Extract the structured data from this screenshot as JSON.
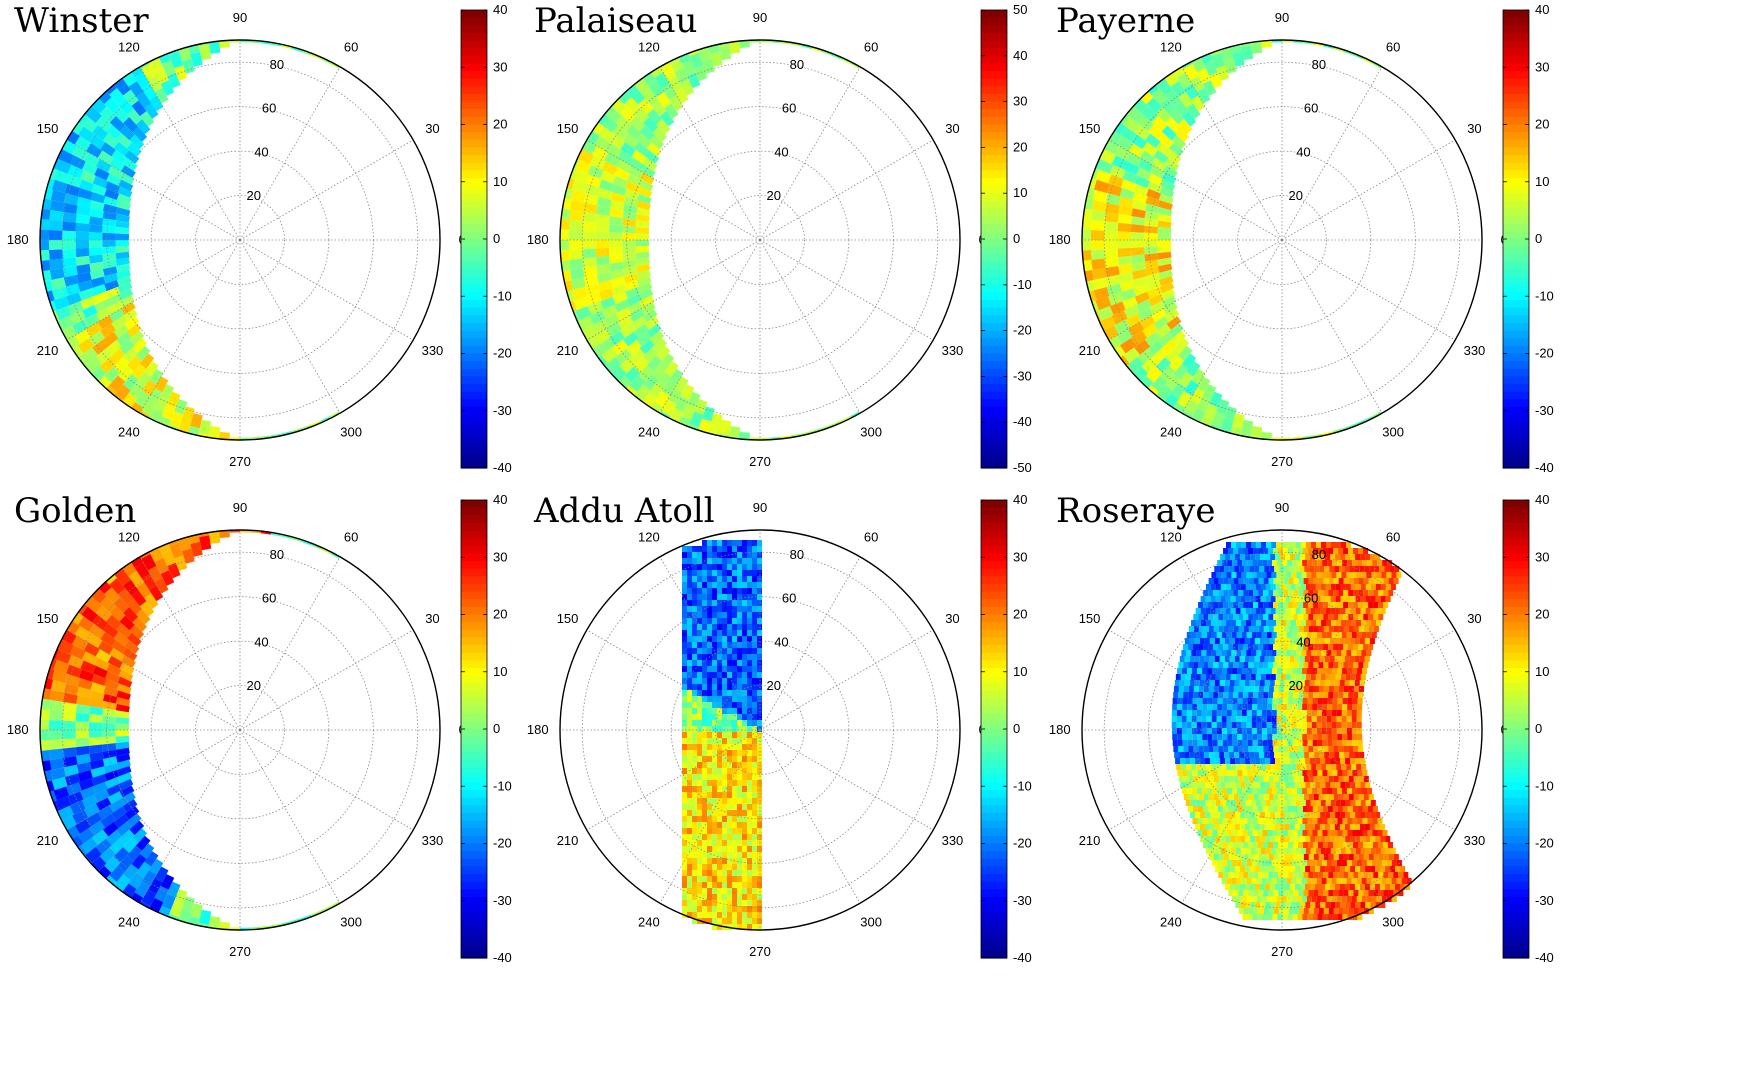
{
  "figure": {
    "angle_labels": [
      "0",
      "30",
      "60",
      "90",
      "120",
      "150",
      "180",
      "210",
      "240",
      "270",
      "300",
      "330"
    ],
    "radius_labels": [
      "20",
      "40",
      "60",
      "80"
    ],
    "colormap": [
      "#00008f",
      "#0000ff",
      "#0080ff",
      "#00ffff",
      "#80ff80",
      "#ffff00",
      "#ff8000",
      "#ff0000",
      "#800000"
    ]
  },
  "chart_data": [
    {
      "type": "heatmap",
      "title": "Winster",
      "coordinate_system": "polar",
      "angle_ticks": [
        0,
        30,
        60,
        90,
        120,
        150,
        180,
        210,
        240,
        270,
        300,
        330
      ],
      "radius_ticks": [
        20,
        40,
        60,
        80
      ],
      "colorbar": {
        "min": -40,
        "max": 40,
        "ticks": [
          40,
          30,
          20,
          10,
          0,
          -10,
          -20,
          -30,
          -40
        ]
      },
      "coverage": {
        "theta_range": [
          60,
          300
        ],
        "radius_range": [
          60,
          90
        ]
      },
      "field": {
        "mean": 0,
        "bands": [
          {
            "theta": [
              120,
              200
            ],
            "value": -12
          },
          {
            "theta": [
              210,
              270
            ],
            "value": 8
          }
        ]
      }
    },
    {
      "type": "heatmap",
      "title": "Palaiseau",
      "coordinate_system": "polar",
      "angle_ticks": [
        0,
        30,
        60,
        90,
        120,
        150,
        180,
        210,
        240,
        270,
        300,
        330
      ],
      "radius_ticks": [
        20,
        40,
        60,
        80
      ],
      "colorbar": {
        "min": -50,
        "max": 50,
        "ticks": [
          50,
          40,
          30,
          20,
          10,
          0,
          -10,
          -20,
          -30,
          -40,
          -50
        ]
      },
      "coverage": {
        "theta_range": [
          60,
          300
        ],
        "radius_range": [
          60,
          90
        ]
      },
      "field": {
        "mean": 3,
        "bands": [
          {
            "theta": [
              150,
              200
            ],
            "value": 8
          }
        ]
      }
    },
    {
      "type": "heatmap",
      "title": "Payerne",
      "coordinate_system": "polar",
      "angle_ticks": [
        0,
        30,
        60,
        90,
        120,
        150,
        180,
        210,
        240,
        270,
        300,
        330
      ],
      "radius_ticks": [
        20,
        40,
        60,
        80
      ],
      "colorbar": {
        "min": -40,
        "max": 40,
        "ticks": [
          40,
          30,
          20,
          10,
          0,
          -10,
          -20,
          -30,
          -40
        ]
      },
      "coverage": {
        "theta_range": [
          60,
          300
        ],
        "radius_range": [
          60,
          90
        ]
      },
      "field": {
        "mean": 2,
        "bands": [
          {
            "theta": [
              160,
              220
            ],
            "value": 10
          }
        ]
      }
    },
    {
      "type": "heatmap",
      "title": "Golden",
      "coordinate_system": "polar",
      "angle_ticks": [
        0,
        30,
        60,
        90,
        120,
        150,
        180,
        210,
        240,
        270,
        300,
        330
      ],
      "radius_ticks": [
        20,
        40,
        60,
        80
      ],
      "colorbar": {
        "min": -40,
        "max": 40,
        "ticks": [
          40,
          30,
          20,
          10,
          0,
          -10,
          -20,
          -30,
          -40
        ]
      },
      "coverage": {
        "theta_range": [
          60,
          300
        ],
        "radius_range": [
          60,
          90
        ]
      },
      "field": {
        "mean": 0,
        "bands": [
          {
            "theta": [
              80,
              170
            ],
            "value": 22
          },
          {
            "theta": [
              185,
              250
            ],
            "value": -22
          }
        ]
      }
    },
    {
      "type": "heatmap",
      "title": "Addu Atoll",
      "coordinate_system": "polar",
      "angle_ticks": [
        0,
        30,
        60,
        90,
        120,
        150,
        180,
        210,
        240,
        270,
        300,
        330
      ],
      "radius_ticks": [
        20,
        40,
        60,
        80
      ],
      "colorbar": {
        "min": -40,
        "max": 40,
        "ticks": [
          40,
          30,
          20,
          10,
          0,
          -10,
          -20,
          -30,
          -40
        ]
      },
      "coverage": {
        "shape": "vertical strip left of the 90-270 line"
      },
      "field": {
        "mean": 0,
        "bands": [
          {
            "theta": [
              90,
              150
            ],
            "value": -22
          },
          {
            "theta": [
              180,
              270
            ],
            "value": 12
          }
        ]
      }
    },
    {
      "type": "heatmap",
      "title": "Roseraye",
      "coordinate_system": "polar",
      "angle_ticks": [
        0,
        30,
        60,
        90,
        120,
        150,
        180,
        210,
        240,
        270,
        300,
        330
      ],
      "radius_ticks": [
        20,
        40,
        60,
        80
      ],
      "colorbar": {
        "min": -40,
        "max": 40,
        "ticks": [
          40,
          30,
          20,
          10,
          0,
          -10,
          -20,
          -30,
          -40
        ]
      },
      "coverage": {
        "shape": "band through the centre from 100 to 290"
      },
      "field": {
        "mean": 0,
        "bands": [
          {
            "theta": [
              100,
              180
            ],
            "value": -20
          },
          {
            "theta": [
              180,
              300
            ],
            "value": 22
          }
        ]
      }
    }
  ]
}
